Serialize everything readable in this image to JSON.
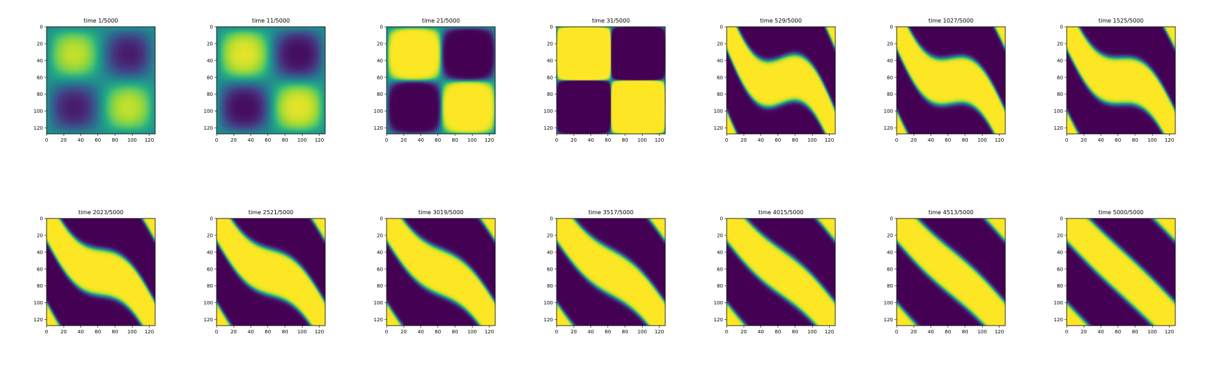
{
  "figure": {
    "rows": 2,
    "cols": 7
  },
  "colors": {
    "yellow": "#f6e24c",
    "purple": "#440154",
    "teal": "#21918c"
  },
  "chart_data": [
    {
      "type": "heatmap",
      "title": "time 1/5000",
      "pattern": "init",
      "contrast": 0.55,
      "xlim": [
        0,
        127
      ],
      "ylim": [
        127,
        0
      ],
      "xticks": [
        0,
        20,
        40,
        60,
        80,
        100,
        120
      ],
      "yticks": [
        0,
        20,
        40,
        60,
        80,
        100,
        120
      ],
      "colormap": "viridis",
      "grid": false
    },
    {
      "type": "heatmap",
      "title": "time 11/5000",
      "pattern": "init",
      "contrast": 0.75,
      "xlim": [
        0,
        127
      ],
      "ylim": [
        127,
        0
      ],
      "xticks": [
        0,
        20,
        40,
        60,
        80,
        100,
        120
      ],
      "yticks": [
        0,
        20,
        40,
        60,
        80,
        100,
        120
      ],
      "colormap": "viridis",
      "grid": false
    },
    {
      "type": "heatmap",
      "title": "time 21/5000",
      "pattern": "init",
      "contrast": 4.0,
      "xlim": [
        0,
        127
      ],
      "ylim": [
        127,
        0
      ],
      "xticks": [
        0,
        20,
        40,
        60,
        80,
        100,
        120
      ],
      "yticks": [
        0,
        20,
        40,
        60,
        80,
        100,
        120
      ],
      "colormap": "viridis",
      "grid": false
    },
    {
      "type": "heatmap",
      "title": "time 31/5000",
      "pattern": "checker",
      "xlim": [
        0,
        127
      ],
      "ylim": [
        127,
        0
      ],
      "xticks": [
        0,
        20,
        40,
        60,
        80,
        100,
        120
      ],
      "yticks": [
        0,
        20,
        40,
        60,
        80,
        100,
        120
      ],
      "colormap": "viridis",
      "grid": false
    },
    {
      "type": "heatmap",
      "title": "time 529/5000",
      "pattern": "wave",
      "amp": 1.0,
      "width": 40,
      "xlim": [
        0,
        127
      ],
      "ylim": [
        127,
        0
      ],
      "xticks": [
        0,
        20,
        40,
        60,
        80,
        100,
        120
      ],
      "yticks": [
        0,
        20,
        40,
        60,
        80,
        100,
        120
      ],
      "colormap": "viridis",
      "grid": false
    },
    {
      "type": "heatmap",
      "title": "time 1027/5000",
      "pattern": "wave",
      "amp": 0.85,
      "width": 40,
      "xlim": [
        0,
        127
      ],
      "ylim": [
        127,
        0
      ],
      "xticks": [
        0,
        20,
        40,
        60,
        80,
        100,
        120
      ],
      "yticks": [
        0,
        20,
        40,
        60,
        80,
        100,
        120
      ],
      "colormap": "viridis",
      "grid": false
    },
    {
      "type": "heatmap",
      "title": "time 1525/5000",
      "pattern": "wave",
      "amp": 0.75,
      "width": 40,
      "xlim": [
        0,
        127
      ],
      "ylim": [
        127,
        0
      ],
      "xticks": [
        0,
        20,
        40,
        60,
        80,
        100,
        120
      ],
      "yticks": [
        0,
        20,
        40,
        60,
        80,
        100,
        120
      ],
      "colormap": "viridis",
      "grid": false
    },
    {
      "type": "heatmap",
      "title": "time 2023/5000",
      "pattern": "wave",
      "amp": 0.62,
      "width": 40,
      "xlim": [
        0,
        127
      ],
      "ylim": [
        127,
        0
      ],
      "xticks": [
        0,
        20,
        40,
        60,
        80,
        100,
        120
      ],
      "yticks": [
        0,
        20,
        40,
        60,
        80,
        100,
        120
      ],
      "colormap": "viridis",
      "grid": false
    },
    {
      "type": "heatmap",
      "title": "time 2521/5000",
      "pattern": "wave",
      "amp": 0.52,
      "width": 40,
      "xlim": [
        0,
        127
      ],
      "ylim": [
        127,
        0
      ],
      "xticks": [
        0,
        20,
        40,
        60,
        80,
        100,
        120
      ],
      "yticks": [
        0,
        20,
        40,
        60,
        80,
        100,
        120
      ],
      "colormap": "viridis",
      "grid": false
    },
    {
      "type": "heatmap",
      "title": "time 3019/5000",
      "pattern": "wave",
      "amp": 0.42,
      "width": 40,
      "xlim": [
        0,
        127
      ],
      "ylim": [
        127,
        0
      ],
      "xticks": [
        0,
        20,
        40,
        60,
        80,
        100,
        120
      ],
      "yticks": [
        0,
        20,
        40,
        60,
        80,
        100,
        120
      ],
      "colormap": "viridis",
      "grid": false
    },
    {
      "type": "heatmap",
      "title": "time 3517/5000",
      "pattern": "wave",
      "amp": 0.32,
      "width": 40,
      "xlim": [
        0,
        127
      ],
      "ylim": [
        127,
        0
      ],
      "xticks": [
        0,
        20,
        40,
        60,
        80,
        100,
        120
      ],
      "yticks": [
        0,
        20,
        40,
        60,
        80,
        100,
        120
      ],
      "colormap": "viridis",
      "grid": false
    },
    {
      "type": "heatmap",
      "title": "time 4015/5000",
      "pattern": "wave",
      "amp": 0.2,
      "width": 40,
      "xlim": [
        0,
        127
      ],
      "ylim": [
        127,
        0
      ],
      "xticks": [
        0,
        20,
        40,
        60,
        80,
        100,
        120
      ],
      "yticks": [
        0,
        20,
        40,
        60,
        80,
        100,
        120
      ],
      "colormap": "viridis",
      "grid": false
    },
    {
      "type": "heatmap",
      "title": "time 4513/5000",
      "pattern": "wave",
      "amp": 0.12,
      "width": 40,
      "xlim": [
        0,
        127
      ],
      "ylim": [
        127,
        0
      ],
      "xticks": [
        0,
        20,
        40,
        60,
        80,
        100,
        120
      ],
      "yticks": [
        0,
        20,
        40,
        60,
        80,
        100,
        120
      ],
      "colormap": "viridis",
      "grid": false
    },
    {
      "type": "heatmap",
      "title": "time 5000/5000",
      "pattern": "wave",
      "amp": 0.05,
      "width": 40,
      "xlim": [
        0,
        127
      ],
      "ylim": [
        127,
        0
      ],
      "xticks": [
        0,
        20,
        40,
        60,
        80,
        100,
        120
      ],
      "yticks": [
        0,
        20,
        40,
        60,
        80,
        100,
        120
      ],
      "colormap": "viridis",
      "grid": false
    }
  ]
}
